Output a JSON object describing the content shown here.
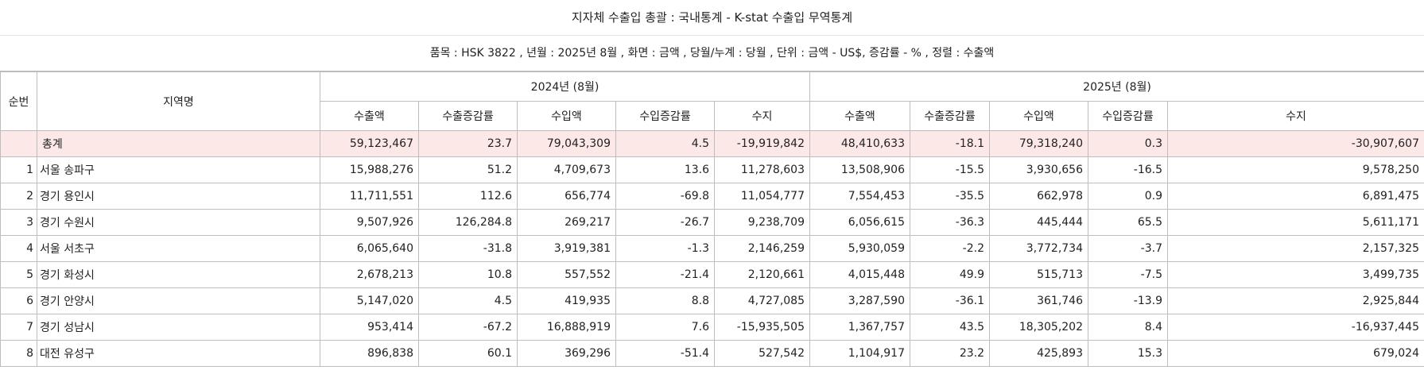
{
  "title": "지자체 수출입 총괄 : 국내통계 - K-stat 수출입 무역통계",
  "conditions": "품목 : HSK 3822 , 년월 : 2025년 8월 , 화면 : 금액 , 당월/누계 : 당월 , 단위 : 금액 - US$, 증감률 - % , 정렬 : 수출액",
  "headers": {
    "seq": "순번",
    "region": "지역명",
    "period1": "2024년 (8월)",
    "period2": "2025년 (8월)",
    "export": "수출액",
    "export_rate": "수출증감률",
    "import": "수입액",
    "import_rate": "수입증감률",
    "balance": "수지"
  },
  "total": {
    "name": "총계",
    "y2024": [
      "59,123,467",
      "23.7",
      "79,043,309",
      "4.5",
      "-19,919,842"
    ],
    "y2025": [
      "48,410,633",
      "-18.1",
      "79,318,240",
      "0.3",
      "-30,907,607"
    ]
  },
  "rows": [
    {
      "seq": "1",
      "name": "서울 송파구",
      "y2024": [
        "15,988,276",
        "51.2",
        "4,709,673",
        "13.6",
        "11,278,603"
      ],
      "y2025": [
        "13,508,906",
        "-15.5",
        "3,930,656",
        "-16.5",
        "9,578,250"
      ]
    },
    {
      "seq": "2",
      "name": "경기 용인시",
      "y2024": [
        "11,711,551",
        "112.6",
        "656,774",
        "-69.8",
        "11,054,777"
      ],
      "y2025": [
        "7,554,453",
        "-35.5",
        "662,978",
        "0.9",
        "6,891,475"
      ]
    },
    {
      "seq": "3",
      "name": "경기 수원시",
      "y2024": [
        "9,507,926",
        "126,284.8",
        "269,217",
        "-26.7",
        "9,238,709"
      ],
      "y2025": [
        "6,056,615",
        "-36.3",
        "445,444",
        "65.5",
        "5,611,171"
      ]
    },
    {
      "seq": "4",
      "name": "서울 서초구",
      "y2024": [
        "6,065,640",
        "-31.8",
        "3,919,381",
        "-1.3",
        "2,146,259"
      ],
      "y2025": [
        "5,930,059",
        "-2.2",
        "3,772,734",
        "-3.7",
        "2,157,325"
      ]
    },
    {
      "seq": "5",
      "name": "경기 화성시",
      "y2024": [
        "2,678,213",
        "10.8",
        "557,552",
        "-21.4",
        "2,120,661"
      ],
      "y2025": [
        "4,015,448",
        "49.9",
        "515,713",
        "-7.5",
        "3,499,735"
      ]
    },
    {
      "seq": "6",
      "name": "경기 안양시",
      "y2024": [
        "5,147,020",
        "4.5",
        "419,935",
        "8.8",
        "4,727,085"
      ],
      "y2025": [
        "3,287,590",
        "-36.1",
        "361,746",
        "-13.9",
        "2,925,844"
      ]
    },
    {
      "seq": "7",
      "name": "경기 성남시",
      "y2024": [
        "953,414",
        "-67.2",
        "16,888,919",
        "7.6",
        "-15,935,505"
      ],
      "y2025": [
        "1,367,757",
        "43.5",
        "18,305,202",
        "8.4",
        "-16,937,445"
      ]
    },
    {
      "seq": "8",
      "name": "대전 유성구",
      "y2024": [
        "896,838",
        "60.1",
        "369,296",
        "-51.4",
        "527,542"
      ],
      "y2025": [
        "1,104,917",
        "23.2",
        "425,893",
        "15.3",
        "679,024"
      ]
    }
  ]
}
